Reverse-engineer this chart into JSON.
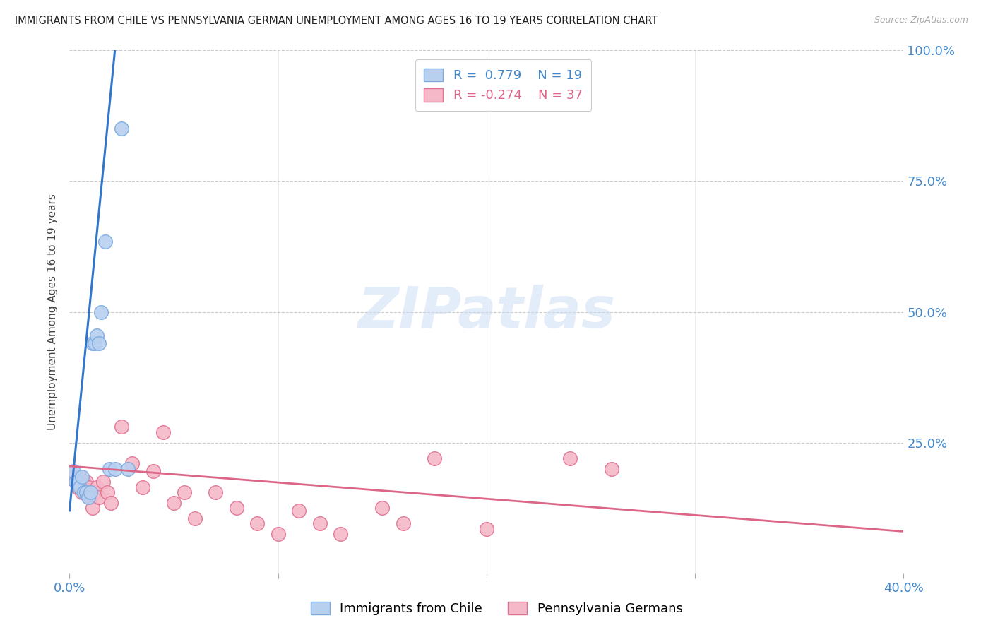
{
  "title": "IMMIGRANTS FROM CHILE VS PENNSYLVANIA GERMAN UNEMPLOYMENT AMONG AGES 16 TO 19 YEARS CORRELATION CHART",
  "source": "Source: ZipAtlas.com",
  "ylabel": "Unemployment Among Ages 16 to 19 years",
  "xlim": [
    0.0,
    0.4
  ],
  "ylim": [
    0.0,
    1.0
  ],
  "background_color": "#ffffff",
  "grid_color": "#cccccc",
  "blue_color": "#b8d0f0",
  "blue_edge_color": "#7aaae0",
  "pink_color": "#f5b8c8",
  "pink_edge_color": "#e07090",
  "blue_line_color": "#3377cc",
  "pink_line_color": "#dd6688",
  "legend_R1": "0.779",
  "legend_N1": "19",
  "legend_R2": "-0.274",
  "legend_N2": "37",
  "label1": "Immigrants from Chile",
  "label2": "Pennsylvania Germans",
  "watermark_text": "ZIPatlas",
  "blue_scatter_x": [
    0.002,
    0.003,
    0.004,
    0.005,
    0.006,
    0.007,
    0.008,
    0.009,
    0.01,
    0.011,
    0.012,
    0.013,
    0.014,
    0.015,
    0.017,
    0.019,
    0.022,
    0.025,
    0.028
  ],
  "blue_scatter_y": [
    0.195,
    0.175,
    0.175,
    0.165,
    0.185,
    0.155,
    0.155,
    0.145,
    0.155,
    0.44,
    0.44,
    0.455,
    0.44,
    0.5,
    0.635,
    0.2,
    0.2,
    0.85,
    0.2
  ],
  "pink_scatter_x": [
    0.002,
    0.003,
    0.004,
    0.005,
    0.006,
    0.007,
    0.008,
    0.009,
    0.01,
    0.011,
    0.012,
    0.013,
    0.014,
    0.016,
    0.018,
    0.02,
    0.025,
    0.03,
    0.035,
    0.04,
    0.045,
    0.05,
    0.055,
    0.06,
    0.07,
    0.08,
    0.09,
    0.1,
    0.11,
    0.12,
    0.13,
    0.15,
    0.16,
    0.175,
    0.2,
    0.24,
    0.26
  ],
  "pink_scatter_y": [
    0.185,
    0.175,
    0.165,
    0.185,
    0.155,
    0.155,
    0.175,
    0.165,
    0.145,
    0.125,
    0.155,
    0.165,
    0.145,
    0.175,
    0.155,
    0.135,
    0.28,
    0.21,
    0.165,
    0.195,
    0.27,
    0.135,
    0.155,
    0.105,
    0.155,
    0.125,
    0.095,
    0.075,
    0.12,
    0.095,
    0.075,
    0.125,
    0.095,
    0.22,
    0.085,
    0.22,
    0.2
  ],
  "blue_line_x": [
    0.0,
    0.022
  ],
  "blue_line_y": [
    0.12,
    1.01
  ],
  "pink_line_x": [
    0.0,
    0.4
  ],
  "pink_line_y": [
    0.205,
    0.08
  ],
  "x_tick_positions": [
    0.0,
    0.1,
    0.2,
    0.3,
    0.4
  ],
  "x_tick_labels": [
    "0.0%",
    "",
    "",
    "",
    "40.0%"
  ],
  "y_tick_positions": [
    0.0,
    0.25,
    0.5,
    0.75,
    1.0
  ],
  "y_tick_labels_right": [
    "",
    "25.0%",
    "50.0%",
    "75.0%",
    "100.0%"
  ]
}
